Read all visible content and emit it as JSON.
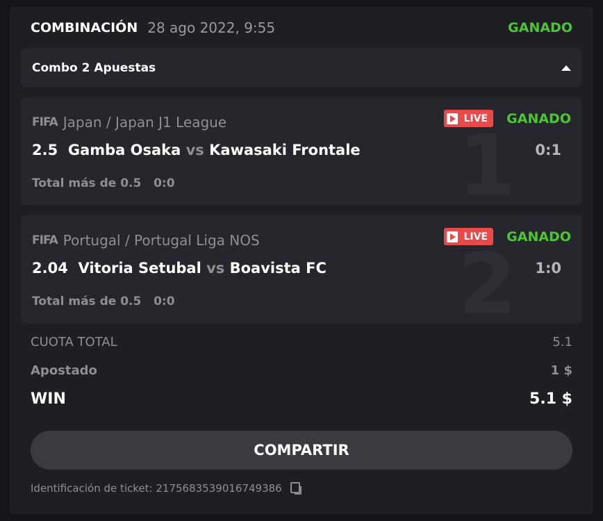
{
  "header": {
    "title": "COMBINACIÓN",
    "date": "28 ago 2022, 9:55",
    "status": "GANADO"
  },
  "combo": {
    "label": "Combo 2 Apuestas"
  },
  "bets": [
    {
      "index": "1",
      "sport": "FIFA",
      "league": "Japan / Japan J1 League",
      "live": "LIVE",
      "status": "GANADO",
      "odds": "2.5",
      "home": "Gamba Osaka",
      "vs": "vs",
      "away": "Kawasaki Frontale",
      "score": "0:1",
      "market": "Total más de 0.5",
      "market_score": "0:0"
    },
    {
      "index": "2",
      "sport": "FIFA",
      "league": "Portugal / Portugal Liga NOS",
      "live": "LIVE",
      "status": "GANADO",
      "odds": "2.04",
      "home": "Vitoria Setubal",
      "vs": "vs",
      "away": "Boavista FC",
      "score": "1:0",
      "market": "Total más de 0.5",
      "market_score": "0:0"
    }
  ],
  "summary": {
    "total_odds_label": "CUOTA TOTAL",
    "total_odds": "5.1",
    "stake_label": "Apostado",
    "stake": "1 $",
    "win_label": "WIN",
    "win": "5.1 $"
  },
  "share_label": "COMPARTIR",
  "ticket": "Identificación de ticket: 2175683539016749386",
  "colors": {
    "won": "#4ec534",
    "live": "#e84a4a"
  }
}
